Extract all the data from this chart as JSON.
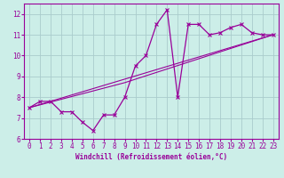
{
  "xlabel": "Windchill (Refroidissement éolien,°C)",
  "xlim": [
    -0.5,
    23.5
  ],
  "ylim": [
    6,
    12.5
  ],
  "yticks": [
    6,
    7,
    8,
    9,
    10,
    11,
    12
  ],
  "xticks": [
    0,
    1,
    2,
    3,
    4,
    5,
    6,
    7,
    8,
    9,
    10,
    11,
    12,
    13,
    14,
    15,
    16,
    17,
    18,
    19,
    20,
    21,
    22,
    23
  ],
  "background_color": "#cceee8",
  "grid_color": "#aacccc",
  "line_color": "#990099",
  "line1_x": [
    0,
    1,
    2,
    3,
    4,
    5,
    6,
    7,
    8,
    9,
    10,
    11,
    12,
    13,
    14,
    15,
    16,
    17,
    18,
    19,
    20,
    21,
    22,
    23
  ],
  "line1_y": [
    7.5,
    7.8,
    7.8,
    7.3,
    7.3,
    6.8,
    6.4,
    7.15,
    7.15,
    8.0,
    9.5,
    10.0,
    11.5,
    12.2,
    8.0,
    11.5,
    11.5,
    11.0,
    11.1,
    11.35,
    11.5,
    11.1,
    11.0,
    11.0
  ],
  "line2_x": [
    0,
    23
  ],
  "line2_y": [
    7.5,
    11.0
  ],
  "line3_x": [
    0,
    9,
    23
  ],
  "line3_y": [
    7.5,
    8.7,
    11.0
  ]
}
